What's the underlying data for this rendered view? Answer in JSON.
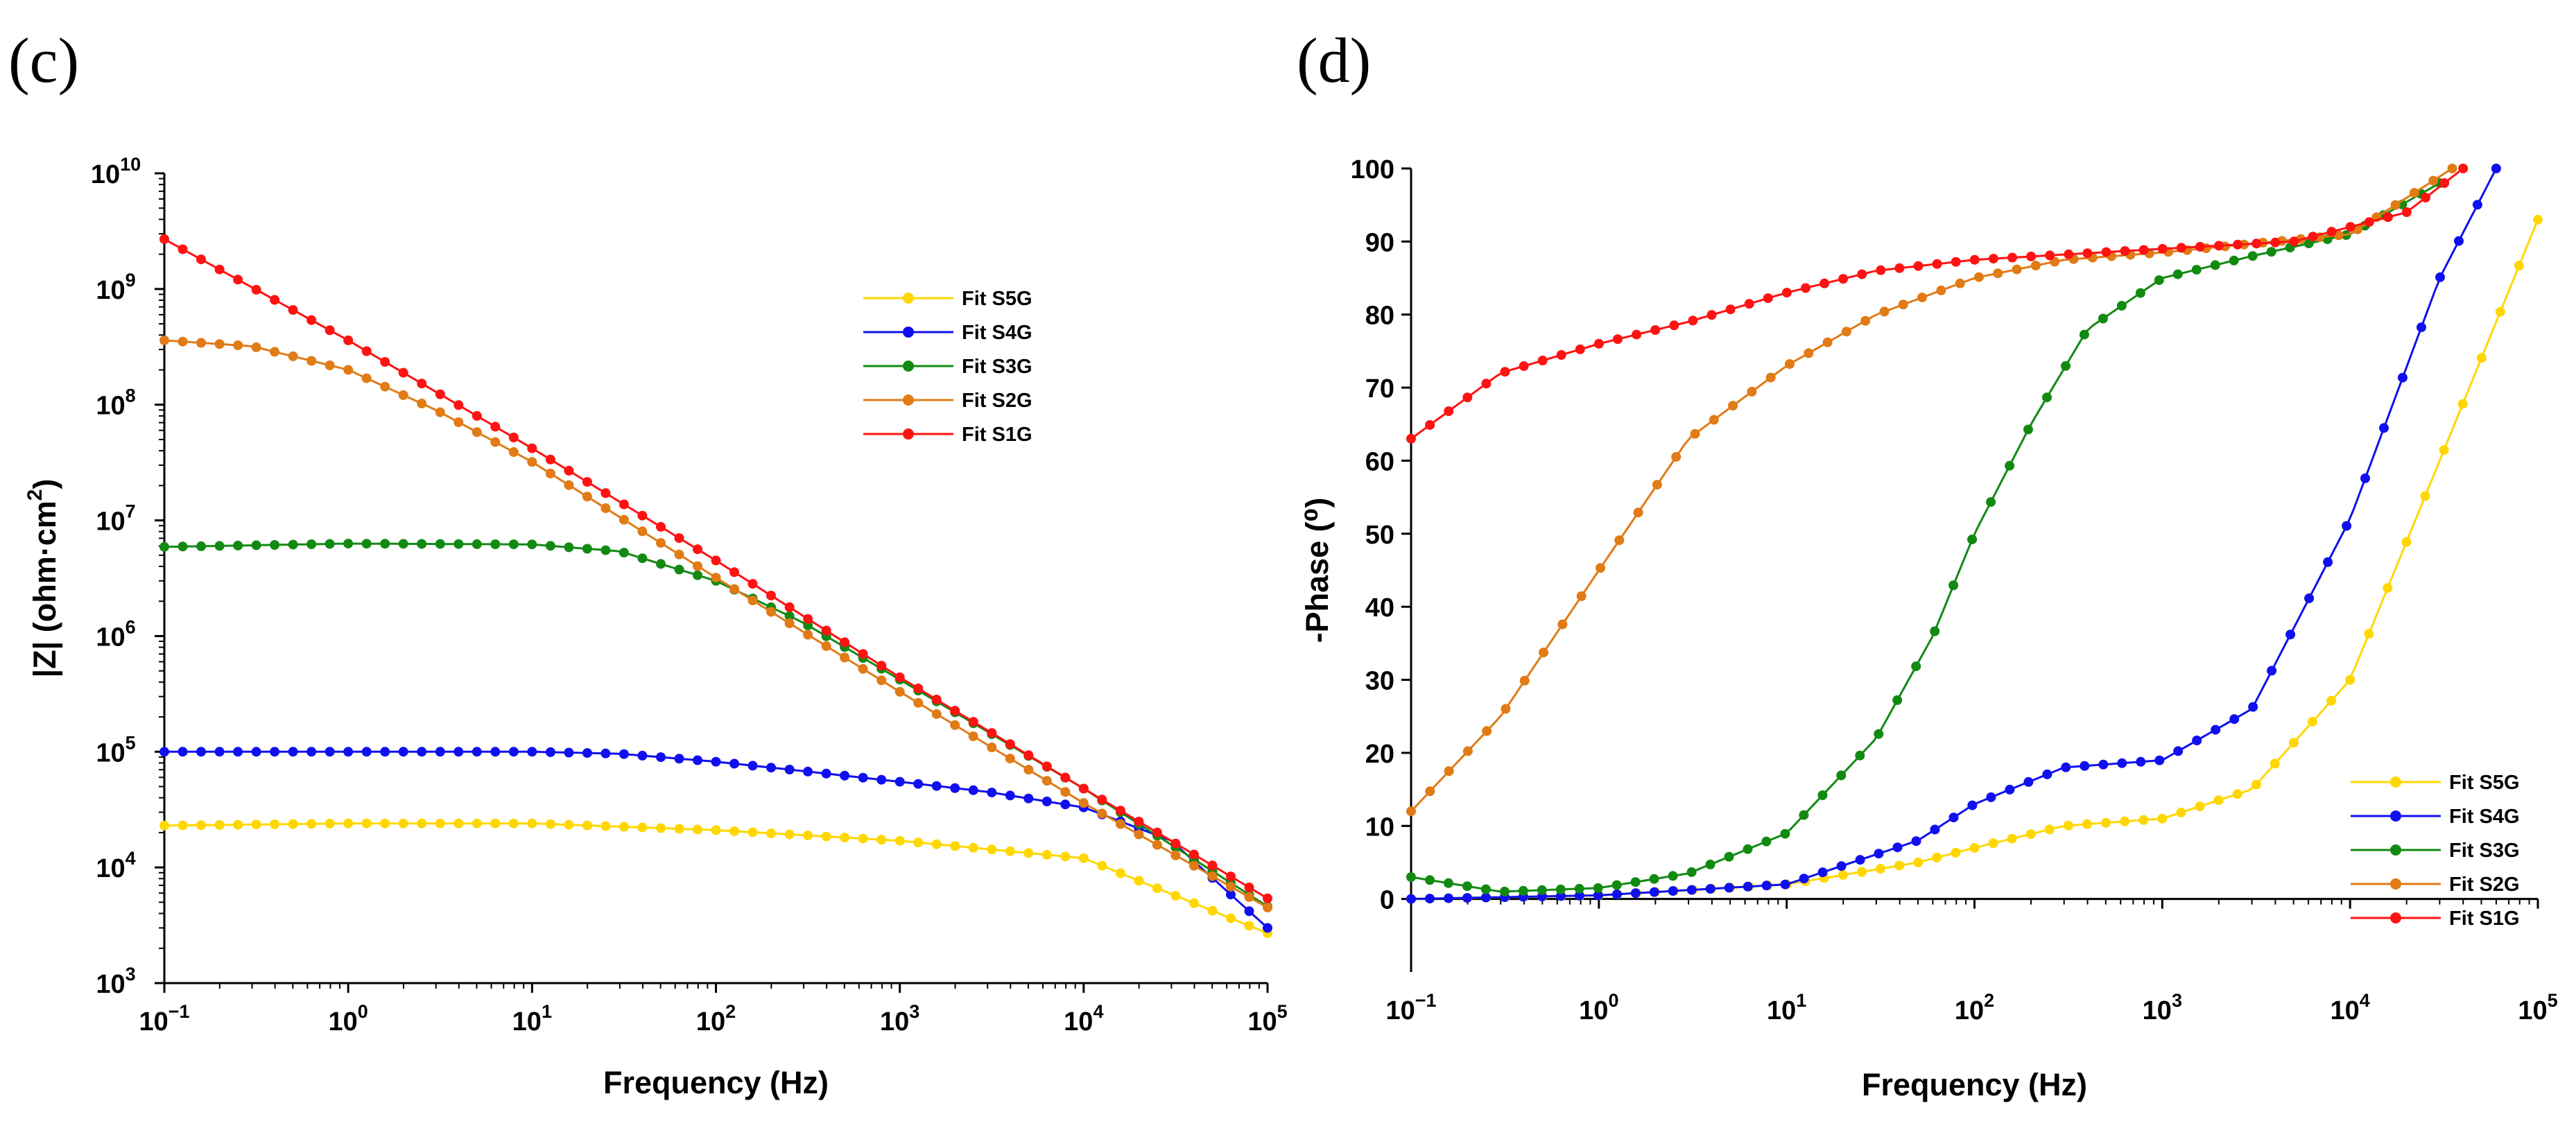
{
  "colors": {
    "S5G": "#ffd700",
    "S4G": "#1010ee",
    "S3G": "#128a12",
    "S2G": "#e07b16",
    "S1G": "#ff1212"
  },
  "panels": [
    {
      "label": "(c)"
    },
    {
      "label": "(d)"
    }
  ],
  "chart_data": [
    {
      "type": "line",
      "panel": "(c)",
      "xlabel": "Frequency (Hz)",
      "ylabel": "|Z| (ohm·cm²)",
      "ylabel_parts": {
        "pre": "|Z| (ohm·cm",
        "sup": "2",
        "post": ")"
      },
      "xscale": "log",
      "yscale": "log",
      "xlim": [
        0.1,
        100000
      ],
      "ylim": [
        1000,
        10000000000
      ],
      "x_ticks": [
        {
          "base": "10",
          "exp": "−1"
        },
        {
          "base": "10",
          "exp": "0"
        },
        {
          "base": "10",
          "exp": "1"
        },
        {
          "base": "10",
          "exp": "2"
        },
        {
          "base": "10",
          "exp": "3"
        },
        {
          "base": "10",
          "exp": "4"
        },
        {
          "base": "10",
          "exp": "5"
        }
      ],
      "y_ticks": [
        {
          "base": "10",
          "exp": "3"
        },
        {
          "base": "10",
          "exp": "4"
        },
        {
          "base": "10",
          "exp": "5"
        },
        {
          "base": "10",
          "exp": "6"
        },
        {
          "base": "10",
          "exp": "7"
        },
        {
          "base": "10",
          "exp": "8"
        },
        {
          "base": "10",
          "exp": "9"
        },
        {
          "base": "10",
          "exp": "10"
        }
      ],
      "grid": false,
      "legend_position": "upper-middle-right",
      "series": [
        {
          "name": "Fit S5G",
          "key": "S5G",
          "points": [
            [
              0.1,
              23000
            ],
            [
              1,
              24000
            ],
            [
              10,
              24000
            ],
            [
              100,
              21000
            ],
            [
              1000,
              17000
            ],
            [
              10000,
              12000
            ],
            [
              100000,
              2700
            ]
          ]
        },
        {
          "name": "Fit S4G",
          "key": "S4G",
          "points": [
            [
              0.1,
              100000
            ],
            [
              1,
              100000
            ],
            [
              10,
              100000
            ],
            [
              30,
              96000
            ],
            [
              100,
              82000
            ],
            [
              300,
              68000
            ],
            [
              1000,
              55000
            ],
            [
              3000,
              45000
            ],
            [
              10000,
              33000
            ],
            [
              30000,
              17000
            ],
            [
              100000,
              3000
            ]
          ]
        },
        {
          "name": "Fit S3G",
          "key": "S3G",
          "points": [
            [
              0.1,
              5900000
            ],
            [
              1,
              6300000
            ],
            [
              10,
              6200000
            ],
            [
              30,
              5400000
            ],
            [
              100,
              3000000
            ],
            [
              300,
              1300000
            ],
            [
              1000,
              420000
            ],
            [
              10000,
              48000
            ],
            [
              100000,
              4600
            ]
          ]
        },
        {
          "name": "Fit S2G",
          "key": "S2G",
          "points": [
            [
              0.1,
              360000000
            ],
            [
              0.3,
              320000000
            ],
            [
              1,
              200000000
            ],
            [
              3,
              90000000
            ],
            [
              10,
              32000000
            ],
            [
              100,
              3200000
            ],
            [
              1000,
              330000
            ],
            [
              10000,
              36000
            ],
            [
              100000,
              4500
            ]
          ]
        },
        {
          "name": "Fit S1G",
          "key": "S1G",
          "points": [
            [
              0.1,
              2700000000
            ],
            [
              1,
              360000000
            ],
            [
              10,
              42000000
            ],
            [
              100,
              4500000
            ],
            [
              1000,
              440000
            ],
            [
              10000,
              48000
            ],
            [
              100000,
              5400
            ]
          ]
        }
      ]
    },
    {
      "type": "line",
      "panel": "(d)",
      "xlabel": "Frequency (Hz)",
      "ylabel": "-Phase (⁰)",
      "xscale": "log",
      "yscale": "linear",
      "xlim": [
        0.1,
        100000
      ],
      "ylim": [
        -10,
        100
      ],
      "x_ticks": [
        {
          "base": "10",
          "exp": "−1"
        },
        {
          "base": "10",
          "exp": "0"
        },
        {
          "base": "10",
          "exp": "1"
        },
        {
          "base": "10",
          "exp": "2"
        },
        {
          "base": "10",
          "exp": "3"
        },
        {
          "base": "10",
          "exp": "4"
        },
        {
          "base": "10",
          "exp": "5"
        }
      ],
      "y_ticks": [
        0,
        10,
        20,
        30,
        40,
        50,
        60,
        70,
        80,
        90,
        100
      ],
      "grid": false,
      "legend_position": "lower-right",
      "series": [
        {
          "name": "Fit S5G",
          "key": "S5G",
          "points": [
            [
              0.1,
              0
            ],
            [
              1,
              0.5
            ],
            [
              10,
              2
            ],
            [
              50,
              5
            ],
            [
              100,
              7
            ],
            [
              300,
              10
            ],
            [
              1000,
              11
            ],
            [
              3000,
              15
            ],
            [
              10000,
              30
            ],
            [
              30000,
              60
            ],
            [
              100000,
              93
            ]
          ]
        },
        {
          "name": "Fit S4G",
          "key": "S4G",
          "points": [
            [
              0.1,
              0
            ],
            [
              1,
              0.5
            ],
            [
              10,
              2
            ],
            [
              50,
              8
            ],
            [
              100,
              13
            ],
            [
              300,
              18
            ],
            [
              1000,
              19
            ],
            [
              3000,
              26
            ],
            [
              10000,
              52
            ],
            [
              30000,
              85
            ],
            [
              60000,
              100
            ]
          ]
        },
        {
          "name": "Fit S3G",
          "key": "S3G",
          "points": [
            [
              0.1,
              3
            ],
            [
              0.3,
              1
            ],
            [
              1,
              1.5
            ],
            [
              3,
              3.5
            ],
            [
              10,
              9
            ],
            [
              30,
              22
            ],
            [
              60,
              36
            ],
            [
              100,
              50
            ],
            [
              200,
              65
            ],
            [
              400,
              78
            ],
            [
              1000,
              85
            ],
            [
              3000,
              88
            ],
            [
              10000,
              91
            ],
            [
              30000,
              98
            ]
          ]
        },
        {
          "name": "Fit S2G",
          "key": "S2G",
          "points": [
            [
              0.1,
              12
            ],
            [
              0.3,
              25
            ],
            [
              1,
              45
            ],
            [
              3,
              63
            ],
            [
              10,
              73
            ],
            [
              30,
              80
            ],
            [
              100,
              85
            ],
            [
              300,
              87.5
            ],
            [
              1000,
              88.5
            ],
            [
              10000,
              91
            ],
            [
              35000,
              100
            ]
          ]
        },
        {
          "name": "Fit S1G",
          "key": "S1G",
          "points": [
            [
              0.1,
              63
            ],
            [
              0.3,
              72
            ],
            [
              1,
              76
            ],
            [
              3,
              79
            ],
            [
              10,
              83
            ],
            [
              30,
              86
            ],
            [
              100,
              87.5
            ],
            [
              1000,
              89
            ],
            [
              5000,
              90
            ],
            [
              20000,
              94
            ],
            [
              40000,
              100
            ]
          ]
        }
      ]
    }
  ]
}
